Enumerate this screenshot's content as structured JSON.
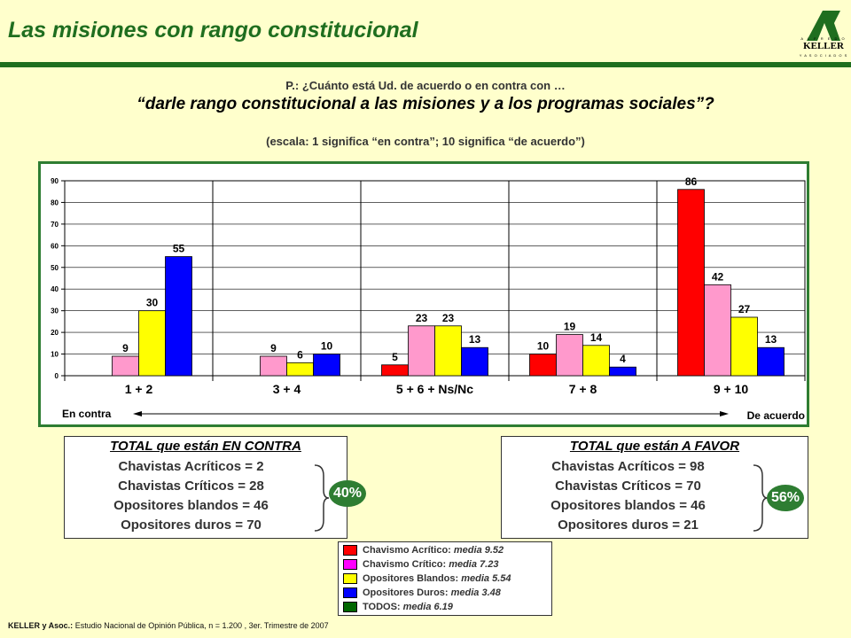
{
  "header": {
    "title": "Las misiones con rango constitucional",
    "logo_top": "A L F R E D O",
    "logo_main": "KELLER",
    "logo_bottom": "Y  A S O C I A D O S"
  },
  "question": "P.: ¿Cuánto está Ud. de acuerdo o en contra con …",
  "statement": "“darle rango constitucional a las misiones y a los programas sociales”?",
  "scale_note": "(escala: 1 significa “en contra”; 10 significa “de acuerdo”)",
  "chart_data": {
    "type": "bar",
    "categories": [
      "1 + 2",
      "3 + 4",
      "5 + 6 + Ns/Nc",
      "7 + 8",
      "9 + 10"
    ],
    "series": [
      {
        "name": "Chavismo Acrítico",
        "color": "#ff0000",
        "values": [
          null,
          null,
          5,
          10,
          86
        ]
      },
      {
        "name": "Chavismo Crítico",
        "color": "#ff99cc",
        "values": [
          9,
          9,
          23,
          19,
          42
        ]
      },
      {
        "name": "Opositores Blandos",
        "color": "#ffff00",
        "values": [
          30,
          6,
          23,
          14,
          27
        ]
      },
      {
        "name": "Opositores Duros",
        "color": "#0000ff",
        "values": [
          55,
          10,
          13,
          4,
          13
        ]
      }
    ],
    "ylim": [
      0,
      90
    ],
    "yticks": [
      0,
      10,
      20,
      30,
      40,
      50,
      60,
      70,
      80,
      90
    ],
    "grid": true,
    "left_label": "En contra",
    "right_label": "De acuerdo"
  },
  "box_left": {
    "title": "TOTAL que están EN CONTRA",
    "lines": [
      "Chavistas Acríticos = 2",
      "Chavistas Críticos = 28",
      "Opositores blandos = 46",
      "Opositores duros = 70"
    ],
    "badge": "40%"
  },
  "box_right": {
    "title": "TOTAL que están A FAVOR",
    "lines": [
      "Chavistas Acríticos = 98",
      "Chavistas Críticos = 70",
      "Opositores blandos = 46",
      "Opositores duros = 21"
    ],
    "badge": "56%"
  },
  "legend": [
    {
      "color": "#ff0000",
      "label": "Chavismo Acrítico: ",
      "mean": "media 9.52"
    },
    {
      "color": "#ff00ff",
      "label": "Chavismo Crítico: ",
      "mean": "media 7.23"
    },
    {
      "color": "#ffff00",
      "label": "Opositores Blandos: ",
      "mean": "media 5.54"
    },
    {
      "color": "#0000ff",
      "label": "Opositores Duros: ",
      "mean": "media 3.48"
    },
    {
      "color": "#006600",
      "label": "TODOS: ",
      "mean": "media 6.19"
    }
  ],
  "source": {
    "bold": "KELLER y Asoc.:",
    "text": " Estudio Nacional de Opinión Pública, n = 1.200 , 3er. Trimestre de 2007"
  }
}
